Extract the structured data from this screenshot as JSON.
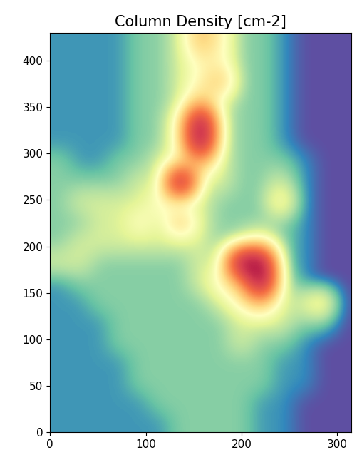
{
  "chart_data": {
    "type": "heatmap",
    "title": "Column Density [cm-2]",
    "xlim": [
      0,
      315
    ],
    "ylim": [
      0,
      430
    ],
    "xticks": [
      0,
      100,
      200,
      300
    ],
    "yticks": [
      0,
      50,
      100,
      150,
      200,
      250,
      300,
      350,
      400
    ],
    "cells": [
      [
        1.6e+21,
        1.6e+21,
        1.6e+21,
        1.6e+21,
        1.6e+21,
        1.6e+21,
        2.5e+21,
        2.5e+21,
        2.5e+21,
        2.5e+21,
        1.6e+21,
        1.6e+21,
        1e+21,
        1e+21,
        1e+21
      ],
      [
        1.6e+21,
        1.6e+21,
        1.6e+21,
        1.6e+21,
        1.6e+21,
        2.5e+21,
        2.5e+21,
        2.5e+21,
        2.5e+21,
        2.5e+21,
        1.6e+21,
        1.6e+21,
        1e+21,
        1e+21,
        1e+21
      ],
      [
        1.6e+21,
        1.6e+21,
        1.6e+21,
        1.6e+21,
        2.5e+21,
        2.5e+21,
        2.5e+21,
        2.5e+21,
        2.5e+21,
        2.5e+21,
        2.5e+21,
        1.6e+21,
        1.6e+21,
        1e+21,
        1e+21
      ],
      [
        1.6e+21,
        1.6e+21,
        1.6e+21,
        1.6e+21,
        2.5e+21,
        2.5e+21,
        2.5e+21,
        2.5e+21,
        2.5e+21,
        2.5e+21,
        2.5e+21,
        1.6e+21,
        1.6e+21,
        1e+21,
        1e+21
      ],
      [
        1.6e+21,
        1.6e+21,
        1.6e+21,
        2.5e+21,
        2.5e+21,
        2.5e+21,
        2.5e+21,
        2.5e+21,
        2.5e+21,
        4e+21,
        2.5e+21,
        2.5e+21,
        1.6e+21,
        1e+21,
        1e+21
      ],
      [
        1.6e+21,
        1.6e+21,
        1.6e+21,
        2.5e+21,
        2.5e+21,
        2.5e+21,
        2.5e+21,
        2.5e+21,
        2.5e+21,
        4e+21,
        4e+21,
        4e+21,
        2.5e+21,
        2.5e+21,
        1e+21
      ],
      [
        1.6e+21,
        1.6e+21,
        2.5e+21,
        2.5e+21,
        2.5e+21,
        2.5e+21,
        2.5e+21,
        2.5e+21,
        4e+21,
        7e+21,
        1.2e+22,
        4e+21,
        4e+21,
        7e+21,
        1e+21
      ],
      [
        1.6e+21,
        2.5e+21,
        2.5e+21,
        2.5e+21,
        2.5e+21,
        2.5e+21,
        2.5e+21,
        4e+21,
        7e+21,
        1.2e+22,
        4e+22,
        4e+21,
        1.6e+21,
        1e+21,
        1e+21
      ],
      [
        4e+21,
        4e+21,
        2.5e+21,
        2.5e+21,
        2.5e+21,
        2.5e+21,
        2.5e+21,
        4e+21,
        4e+21,
        4e+22,
        4e+22,
        2.5e+21,
        1.6e+21,
        1e+21,
        1e+21
      ],
      [
        2.5e+21,
        4e+21,
        4e+21,
        4e+21,
        4e+21,
        4e+21,
        4e+21,
        4e+21,
        2.5e+21,
        4e+21,
        7e+21,
        2.5e+21,
        1.6e+21,
        1e+21,
        1e+21
      ],
      [
        2.5e+21,
        2.5e+21,
        4e+21,
        4e+21,
        7e+21,
        4e+21,
        1.2e+22,
        4e+21,
        2.5e+21,
        2.5e+21,
        2.5e+21,
        2.5e+21,
        1.6e+21,
        1e+21,
        1e+21
      ],
      [
        2.5e+21,
        4e+21,
        4e+21,
        4e+21,
        4e+21,
        7e+21,
        4e+21,
        4e+21,
        2.5e+21,
        2.5e+21,
        2.5e+21,
        7e+21,
        1.6e+21,
        1e+21,
        1e+21
      ],
      [
        2.5e+21,
        2.5e+21,
        2.5e+21,
        2.5e+21,
        4e+21,
        4e+21,
        4e+22,
        4e+21,
        4e+21,
        2.5e+21,
        2.5e+21,
        4e+21,
        1.6e+21,
        1e+21,
        1e+21
      ],
      [
        2.5e+21,
        1.6e+21,
        1.6e+21,
        2.5e+21,
        2.5e+21,
        4e+21,
        7e+21,
        1.2e+22,
        4e+21,
        2.5e+21,
        2.5e+21,
        2.5e+21,
        1.6e+21,
        1e+21,
        1e+21
      ],
      [
        1.6e+21,
        1.6e+21,
        1.6e+21,
        1.6e+21,
        2.5e+21,
        2.5e+21,
        7e+21,
        4e+22,
        4e+21,
        2.5e+21,
        2.5e+21,
        1.6e+21,
        1e+21,
        1e+21,
        1e+21
      ],
      [
        1.6e+21,
        1.6e+21,
        1.6e+21,
        1.6e+21,
        2.5e+21,
        2.5e+21,
        7e+21,
        4e+22,
        4e+21,
        2.5e+21,
        2.5e+21,
        1.6e+21,
        1e+21,
        1e+21,
        1e+21
      ],
      [
        1.6e+21,
        1.6e+21,
        1.6e+21,
        1.6e+21,
        2.5e+21,
        2.5e+21,
        4e+21,
        1.2e+22,
        4e+21,
        2.5e+21,
        2.5e+21,
        1.6e+21,
        1e+21,
        1e+21,
        1e+21
      ],
      [
        1.6e+21,
        1.6e+21,
        1.6e+21,
        1.6e+21,
        2.5e+21,
        2.5e+21,
        4e+21,
        7e+21,
        1.2e+22,
        2.5e+21,
        2.5e+21,
        1.6e+21,
        1e+21,
        1e+21,
        1e+21
      ],
      [
        1.6e+21,
        1.6e+21,
        1.6e+21,
        1.6e+21,
        2.5e+21,
        2.5e+21,
        4e+21,
        7e+21,
        7e+21,
        2.5e+21,
        2.5e+21,
        1.6e+21,
        1e+21,
        1e+21,
        1e+21
      ],
      [
        1.6e+21,
        1.6e+21,
        1.6e+21,
        1.6e+21,
        2.5e+21,
        2.5e+21,
        4e+21,
        1.2e+22,
        7e+21,
        2.5e+21,
        2.5e+21,
        1.6e+21,
        1e+21,
        1e+21,
        1e+21
      ]
    ]
  }
}
